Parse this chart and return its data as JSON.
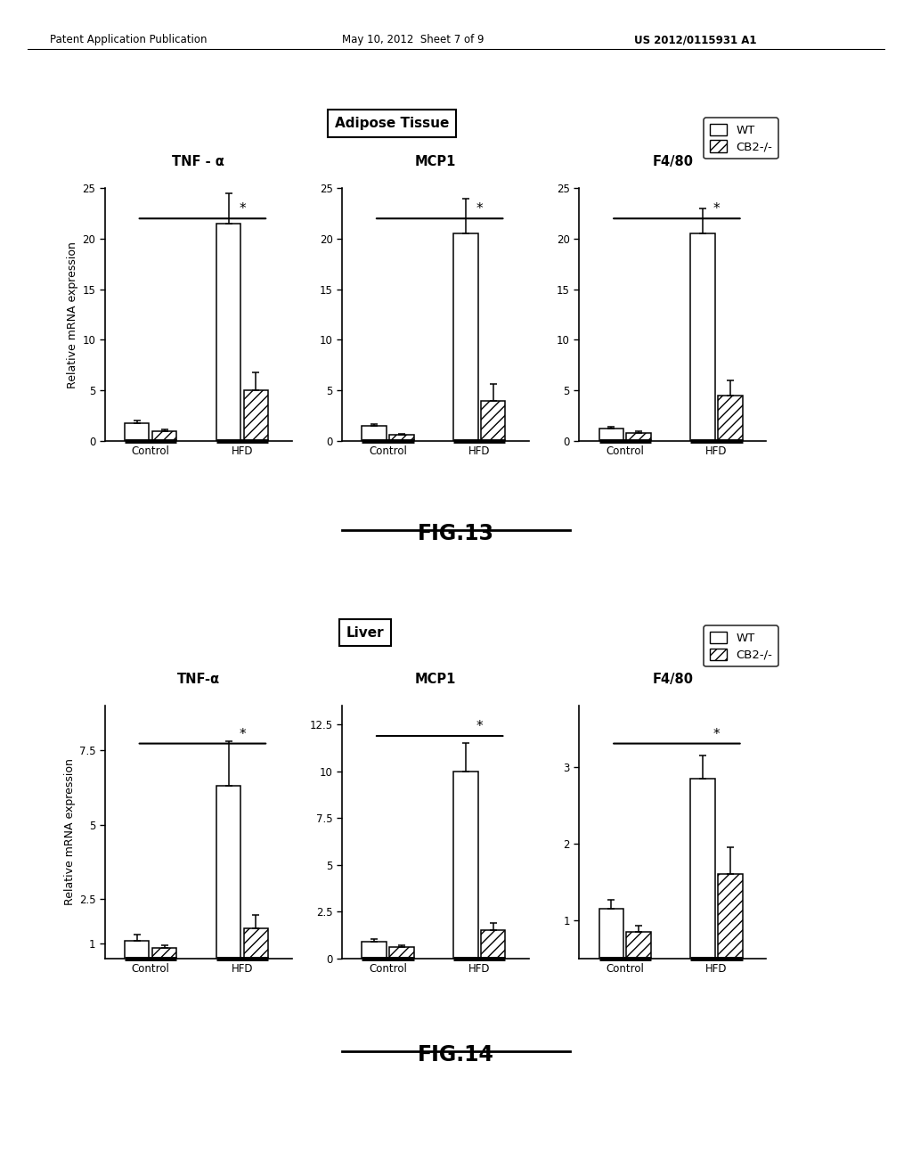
{
  "header_left": "Patent Application Publication",
  "header_mid": "May 10, 2012  Sheet 7 of 9",
  "header_right": "US 2012/0115931 A1",
  "fig13_title": "Adipose Tissue",
  "fig13_label": "FIG.13",
  "fig14_title": "Liver",
  "fig14_label": "FIG.14",
  "ylabel": "Relative mRNA expression",
  "fig13": {
    "subplots": [
      {
        "title": "TNF - α",
        "ylim": [
          0,
          25
        ],
        "yticks": [
          0,
          5,
          10,
          15,
          20,
          25
        ],
        "ytick_labels": [
          "0",
          "5",
          "10",
          "15",
          "20",
          "25"
        ],
        "control_wt": 1.8,
        "control_wt_err": 0.25,
        "control_cb2": 1.0,
        "control_cb2_err": 0.15,
        "hfd_wt": 21.5,
        "hfd_wt_err": 3.0,
        "hfd_cb2": 5.0,
        "hfd_cb2_err": 1.8
      },
      {
        "title": "MCP1",
        "ylim": [
          0,
          25
        ],
        "yticks": [
          0,
          5,
          10,
          15,
          20,
          25
        ],
        "ytick_labels": [
          "0",
          "5",
          "10",
          "15",
          "20",
          "25"
        ],
        "control_wt": 1.5,
        "control_wt_err": 0.2,
        "control_cb2": 0.6,
        "control_cb2_err": 0.1,
        "hfd_wt": 20.5,
        "hfd_wt_err": 3.5,
        "hfd_cb2": 4.0,
        "hfd_cb2_err": 1.6
      },
      {
        "title": "F4/80",
        "ylim": [
          0,
          25
        ],
        "yticks": [
          0,
          5,
          10,
          15,
          20,
          25
        ],
        "ytick_labels": [
          "0",
          "5",
          "10",
          "15",
          "20",
          "25"
        ],
        "control_wt": 1.2,
        "control_wt_err": 0.25,
        "control_cb2": 0.8,
        "control_cb2_err": 0.15,
        "hfd_wt": 20.5,
        "hfd_wt_err": 2.5,
        "hfd_cb2": 4.5,
        "hfd_cb2_err": 1.5
      }
    ]
  },
  "fig14": {
    "subplots": [
      {
        "title": "TNF-α",
        "ylim": [
          0.5,
          9
        ],
        "yticks": [
          1,
          2.5,
          5,
          7.5
        ],
        "ytick_labels": [
          "1",
          "2.5",
          "5",
          "7.5"
        ],
        "control_wt": 1.1,
        "control_wt_err": 0.2,
        "control_cb2": 0.85,
        "control_cb2_err": 0.1,
        "hfd_wt": 6.3,
        "hfd_wt_err": 1.5,
        "hfd_cb2": 1.5,
        "hfd_cb2_err": 0.45
      },
      {
        "title": "MCP1",
        "ylim": [
          0,
          13.5
        ],
        "yticks": [
          0,
          2.5,
          5,
          7.5,
          10,
          12.5
        ],
        "ytick_labels": [
          "0",
          "2.5",
          "5",
          "7.5",
          "10",
          "12.5"
        ],
        "control_wt": 0.9,
        "control_wt_err": 0.15,
        "control_cb2": 0.6,
        "control_cb2_err": 0.1,
        "hfd_wt": 10.0,
        "hfd_wt_err": 1.5,
        "hfd_cb2": 1.5,
        "hfd_cb2_err": 0.4
      },
      {
        "title": "F4/80",
        "ylim": [
          0.5,
          3.8
        ],
        "yticks": [
          1,
          2,
          3
        ],
        "ytick_labels": [
          "1",
          "2",
          "3"
        ],
        "control_wt": 1.15,
        "control_wt_err": 0.12,
        "control_cb2": 0.85,
        "control_cb2_err": 0.08,
        "hfd_wt": 2.85,
        "hfd_wt_err": 0.3,
        "hfd_cb2": 1.6,
        "hfd_cb2_err": 0.35
      }
    ]
  },
  "bar_width": 0.32,
  "wt_color": "white",
  "cb2_hatch": "///",
  "edge_color": "black"
}
